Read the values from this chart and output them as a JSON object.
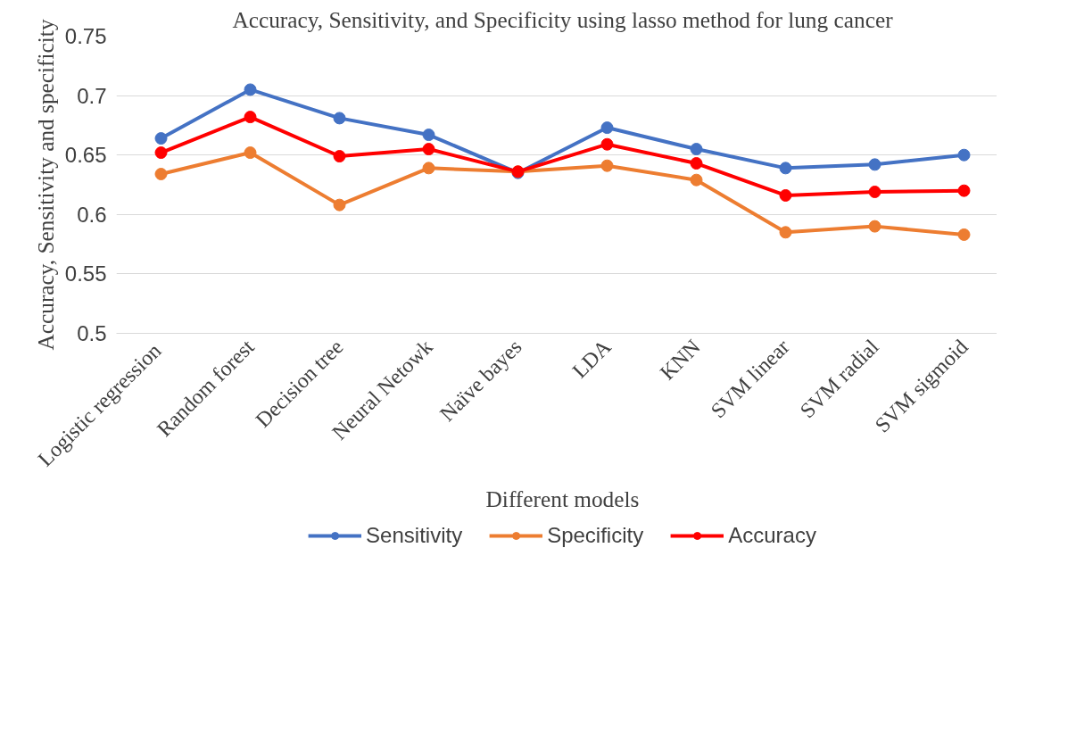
{
  "chart_data": {
    "type": "line",
    "title": "Accuracy, Sensitivity, and Specificity using lasso method for lung cancer",
    "xlabel": "Different models",
    "ylabel": "Accuracy, Sensitivity and specificity",
    "categories": [
      "Logistic  regression",
      "Random forest",
      "Decision tree",
      "Neural Netowk",
      "Naïve bayes",
      "LDA",
      "KNN",
      "SVM linear",
      "SVM radial",
      "SVM sigmoid"
    ],
    "series": [
      {
        "name": "Sensitivity",
        "color": "#4472c4",
        "values": [
          0.664,
          0.705,
          0.681,
          0.667,
          0.635,
          0.673,
          0.655,
          0.639,
          0.642,
          0.65
        ]
      },
      {
        "name": "Specificity",
        "color": "#ed7d31",
        "values": [
          0.634,
          0.652,
          0.608,
          0.639,
          0.636,
          0.641,
          0.629,
          0.585,
          0.59,
          0.583
        ]
      },
      {
        "name": "Accuracy",
        "color": "#ff0000",
        "values": [
          0.652,
          0.682,
          0.649,
          0.655,
          0.636,
          0.659,
          0.643,
          0.616,
          0.619,
          0.62
        ]
      }
    ],
    "ylim": [
      0.5,
      0.75
    ],
    "yticks": [
      0.5,
      0.55,
      0.6,
      0.65,
      0.7,
      0.75
    ],
    "grid": "y",
    "legend": "bottom",
    "marker": "circle",
    "line_style": "solid"
  }
}
